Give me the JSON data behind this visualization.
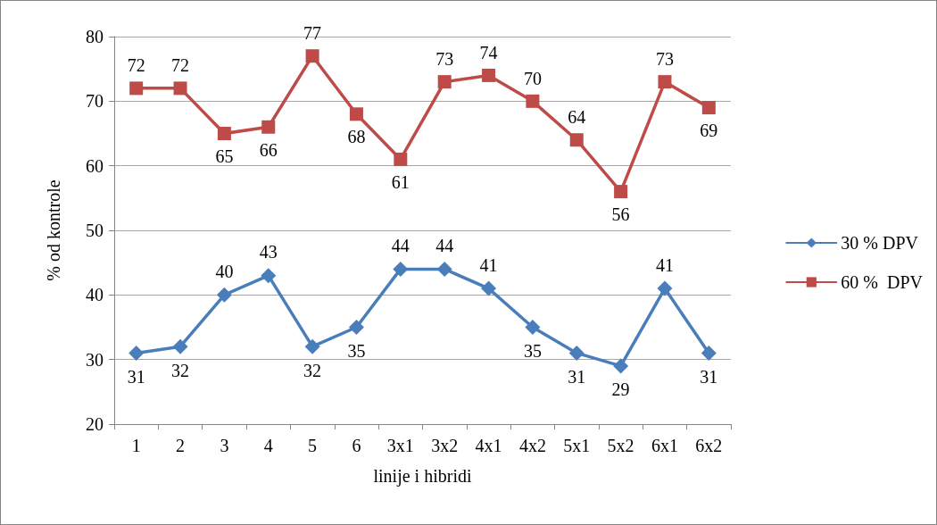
{
  "chart_data": {
    "type": "line",
    "xlabel": "linije i hibridi",
    "ylabel": "% od kontrole",
    "categories": [
      "1",
      "2",
      "3",
      "4",
      "5",
      "6",
      "3x1",
      "3x2",
      "4x1",
      "4x2",
      "5x1",
      "5x2",
      "6x1",
      "6x2"
    ],
    "series": [
      {
        "name": "30 % DPV",
        "color": "#4a7ebb",
        "marker": "diamond",
        "values": [
          31,
          32,
          40,
          43,
          32,
          35,
          44,
          44,
          41,
          35,
          31,
          29,
          41,
          31
        ]
      },
      {
        "name": "60 %  DPV",
        "color": "#be4b48",
        "marker": "square",
        "values": [
          72,
          72,
          65,
          66,
          77,
          68,
          61,
          73,
          74,
          70,
          64,
          56,
          73,
          69
        ]
      }
    ],
    "ylim": [
      20,
      80
    ],
    "yticks": [
      20,
      30,
      40,
      50,
      60,
      70,
      80
    ],
    "grid": "y",
    "legend": "right",
    "data_labels": true
  }
}
